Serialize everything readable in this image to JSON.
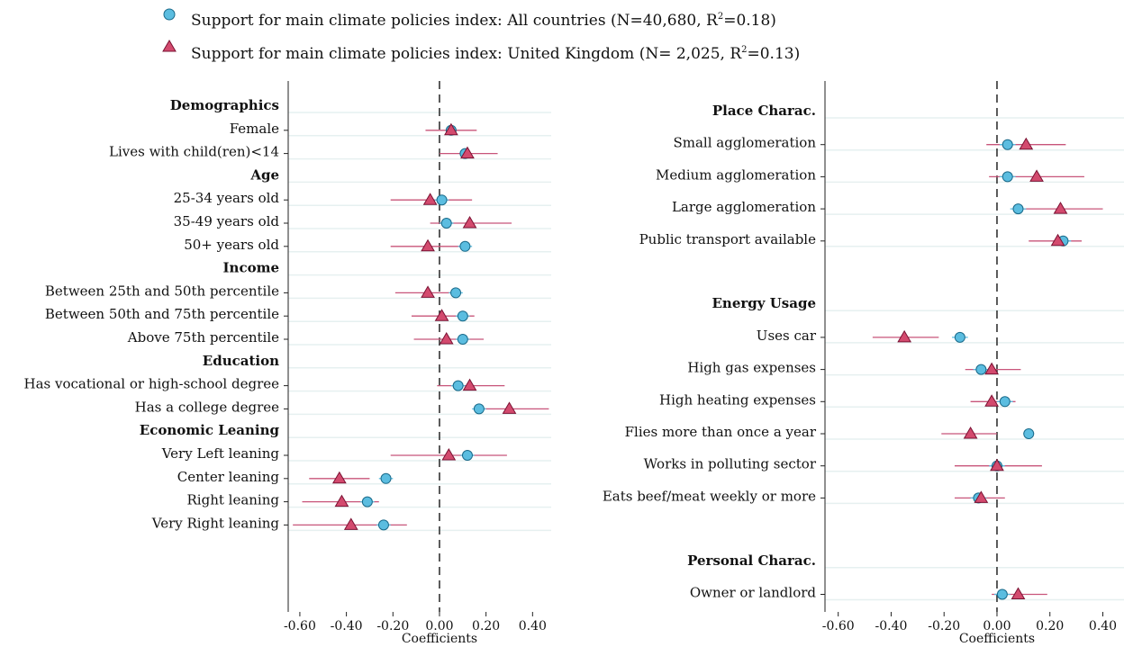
{
  "legend": {
    "items": [
      {
        "label": "Support for main climate policies index: All countries (N=40,680, R",
        "sup": "2",
        "tail": "=0.18)",
        "marker": "circle",
        "color": "#5bbde0"
      },
      {
        "label": "Support for main climate policies index: United Kingdom (N= 2,025, R",
        "sup": "2",
        "tail": "=0.13)",
        "marker": "triangle",
        "color": "#d34a6e"
      }
    ]
  },
  "colors": {
    "circle_fill": "#5bbde0",
    "circle_stroke": "#1a6a8a",
    "circle_ci": "#5bbde0",
    "triangle_fill": "#d34a6e",
    "triangle_stroke": "#7a1233",
    "triangle_ci": "#c8557a",
    "gridline": "#e6f0f0",
    "zero_line": "#333333"
  },
  "chart_data": [
    {
      "type": "scatter",
      "xlabel": "Coefficients",
      "xlim": [
        -0.65,
        0.48
      ],
      "xticks": [
        -0.6,
        -0.4,
        -0.2,
        0.0,
        0.2,
        0.4
      ],
      "xtick_labels": [
        "-0.60",
        "-0.40",
        "-0.20",
        "0.00",
        "0.20",
        "0.40"
      ],
      "reference_line": 0,
      "rows": [
        {
          "label": "Demographics",
          "header": true
        },
        {
          "label": "Female",
          "all": [
            0.05,
            0.03,
            0.07
          ],
          "uk": [
            0.05,
            -0.06,
            0.16
          ]
        },
        {
          "label": "Lives with child(ren)<14",
          "all": [
            0.11,
            0.09,
            0.13
          ],
          "uk": [
            0.12,
            0.0,
            0.25
          ]
        },
        {
          "label": "Age",
          "header": true
        },
        {
          "label": "25-34 years old",
          "all": [
            0.01,
            -0.02,
            0.04
          ],
          "uk": [
            -0.04,
            -0.21,
            0.14
          ]
        },
        {
          "label": "35-49 years old",
          "all": [
            0.03,
            0.0,
            0.06
          ],
          "uk": [
            0.13,
            -0.04,
            0.31
          ]
        },
        {
          "label": "50+ years old",
          "all": [
            0.11,
            0.08,
            0.14
          ],
          "uk": [
            -0.05,
            -0.21,
            0.11
          ]
        },
        {
          "label": "Income",
          "header": true
        },
        {
          "label": "Between 25th and 50th percentile",
          "all": [
            0.07,
            0.04,
            0.1
          ],
          "uk": [
            -0.05,
            -0.19,
            0.09
          ]
        },
        {
          "label": "Between 50th and 75th percentile",
          "all": [
            0.1,
            0.07,
            0.13
          ],
          "uk": [
            0.01,
            -0.12,
            0.15
          ]
        },
        {
          "label": "Above 75th percentile",
          "all": [
            0.1,
            0.07,
            0.13
          ],
          "uk": [
            0.03,
            -0.11,
            0.19
          ]
        },
        {
          "label": "Education",
          "header": true
        },
        {
          "label": "Has vocational or high-school degree",
          "all": [
            0.08,
            0.05,
            0.11
          ],
          "uk": [
            0.13,
            -0.01,
            0.28
          ]
        },
        {
          "label": "Has a college degree",
          "all": [
            0.17,
            0.14,
            0.2
          ],
          "uk": [
            0.3,
            0.15,
            0.47
          ]
        },
        {
          "label": "Economic Leaning",
          "header": true
        },
        {
          "label": "Very Left leaning",
          "all": [
            0.12,
            0.09,
            0.15
          ],
          "uk": [
            0.04,
            -0.21,
            0.29
          ]
        },
        {
          "label": "Center leaning",
          "all": [
            -0.23,
            -0.26,
            -0.2
          ],
          "uk": [
            -0.43,
            -0.56,
            -0.3
          ]
        },
        {
          "label": "Right leaning",
          "all": [
            -0.31,
            -0.34,
            -0.28
          ],
          "uk": [
            -0.42,
            -0.59,
            -0.26
          ]
        },
        {
          "label": "Very Right leaning",
          "all": [
            -0.24,
            -0.27,
            -0.21
          ],
          "uk": [
            -0.38,
            -0.63,
            -0.14
          ]
        }
      ]
    },
    {
      "type": "scatter",
      "xlabel": "Coefficients",
      "xlim": [
        -0.65,
        0.48
      ],
      "xticks": [
        -0.6,
        -0.4,
        -0.2,
        0.0,
        0.2,
        0.4
      ],
      "xtick_labels": [
        "-0.60",
        "-0.40",
        "-0.20",
        "0.00",
        "0.20",
        "0.40"
      ],
      "reference_line": 0,
      "rows": [
        {
          "label": "Place Charac.",
          "header": true
        },
        {
          "label": "Small agglomeration",
          "all": [
            0.04,
            0.01,
            0.07
          ],
          "uk": [
            0.11,
            -0.04,
            0.26
          ]
        },
        {
          "label": "Medium agglomeration",
          "all": [
            0.04,
            0.01,
            0.07
          ],
          "uk": [
            0.15,
            -0.03,
            0.33
          ]
        },
        {
          "label": "Large agglomeration",
          "all": [
            0.08,
            0.05,
            0.11
          ],
          "uk": [
            0.24,
            0.08,
            0.4
          ]
        },
        {
          "label": "Public transport available",
          "all": [
            0.25,
            0.22,
            0.28
          ],
          "uk": [
            0.23,
            0.12,
            0.32
          ]
        },
        {
          "label": "",
          "spacer": true
        },
        {
          "label": "Energy Usage",
          "header": true
        },
        {
          "label": "Uses car",
          "all": [
            -0.14,
            -0.17,
            -0.11
          ],
          "uk": [
            -0.35,
            -0.47,
            -0.22
          ]
        },
        {
          "label": "High gas expenses",
          "all": [
            -0.06,
            -0.09,
            -0.03
          ],
          "uk": [
            -0.02,
            -0.12,
            0.09
          ]
        },
        {
          "label": "High heating expenses",
          "all": [
            0.03,
            0.0,
            0.06
          ],
          "uk": [
            -0.02,
            -0.1,
            0.07
          ]
        },
        {
          "label": "Flies more than once a year",
          "all": [
            0.12,
            0.1,
            0.14
          ],
          "uk": [
            -0.1,
            -0.21,
            0.0
          ]
        },
        {
          "label": "Works in polluting sector",
          "all": [
            0.0,
            -0.03,
            0.03
          ],
          "uk": [
            0.0,
            -0.16,
            0.17
          ]
        },
        {
          "label": "Eats beef/meat weekly or more",
          "all": [
            -0.07,
            -0.1,
            -0.04
          ],
          "uk": [
            -0.06,
            -0.16,
            0.03
          ]
        },
        {
          "label": "",
          "spacer": true
        },
        {
          "label": "Personal Charac.",
          "header": true
        },
        {
          "label": "Owner or landlord",
          "all": [
            0.02,
            -0.01,
            0.05
          ],
          "uk": [
            0.08,
            -0.02,
            0.19
          ]
        }
      ]
    }
  ]
}
